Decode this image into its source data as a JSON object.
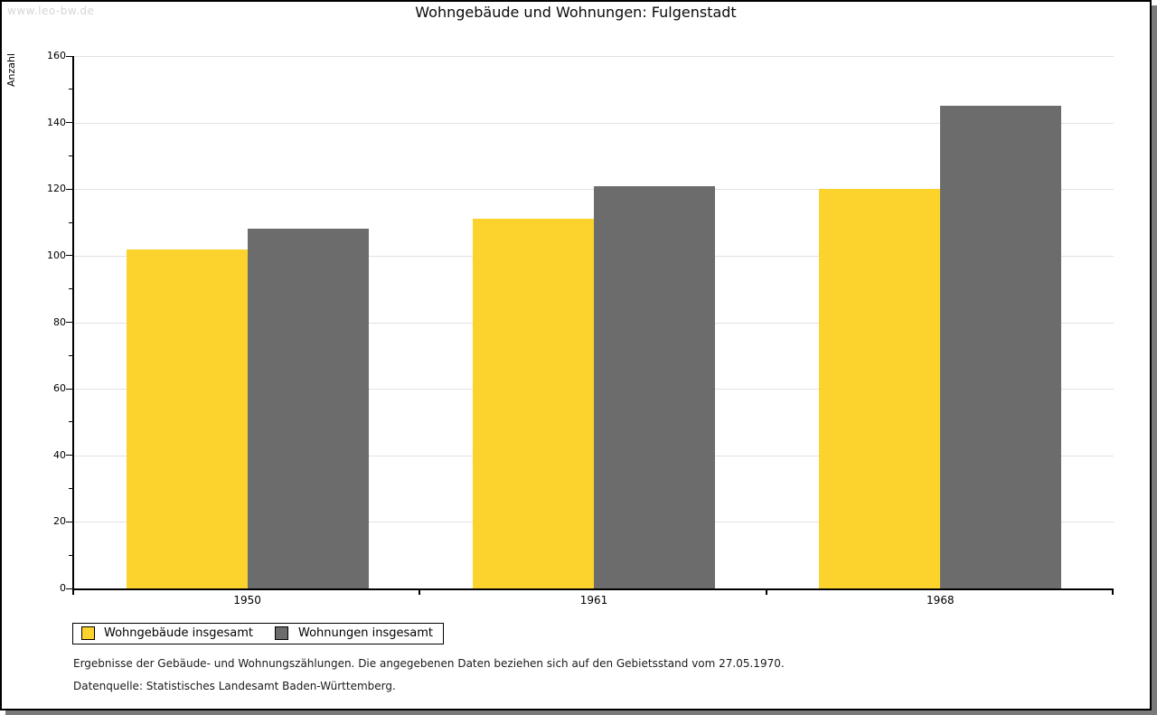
{
  "watermark": "www.leo-bw.de",
  "header": {
    "title": "Wohngebäude und Wohnungen: Fulgenstadt"
  },
  "chart_data": {
    "type": "bar",
    "title": "Wohngebäude und Wohnungen: Fulgenstadt",
    "ylabel": "Anzahl",
    "xlabel": "",
    "categories": [
      "1950",
      "1961",
      "1968"
    ],
    "series": [
      {
        "name": "Wohngebäude insgesamt",
        "color": "#fcd32d",
        "values": [
          102,
          111,
          120
        ]
      },
      {
        "name": "Wohnungen insgesamt",
        "color": "#6c6c6c",
        "values": [
          108,
          121,
          145
        ]
      }
    ],
    "ylim": [
      0,
      160
    ],
    "ytick_step": 20,
    "yminor_step": 10,
    "grid": "horizontal-major",
    "legend_position": "bottom-left"
  },
  "footer": {
    "line1": "Ergebnisse der Gebäude- und Wohnungszählungen. Die angegebenen Daten beziehen sich auf den Gebietsstand vom 27.05.1970.",
    "line2": "Datenquelle: Statistisches Landesamt Baden-Württemberg."
  },
  "colors": {
    "bar_yellow": "#fcd32d",
    "bar_gray": "#6c6c6c",
    "grid": "#e1e1e1",
    "axis": "#000000",
    "frame_shadow": "#7a7a7a",
    "watermark": "#d6d6d6"
  }
}
